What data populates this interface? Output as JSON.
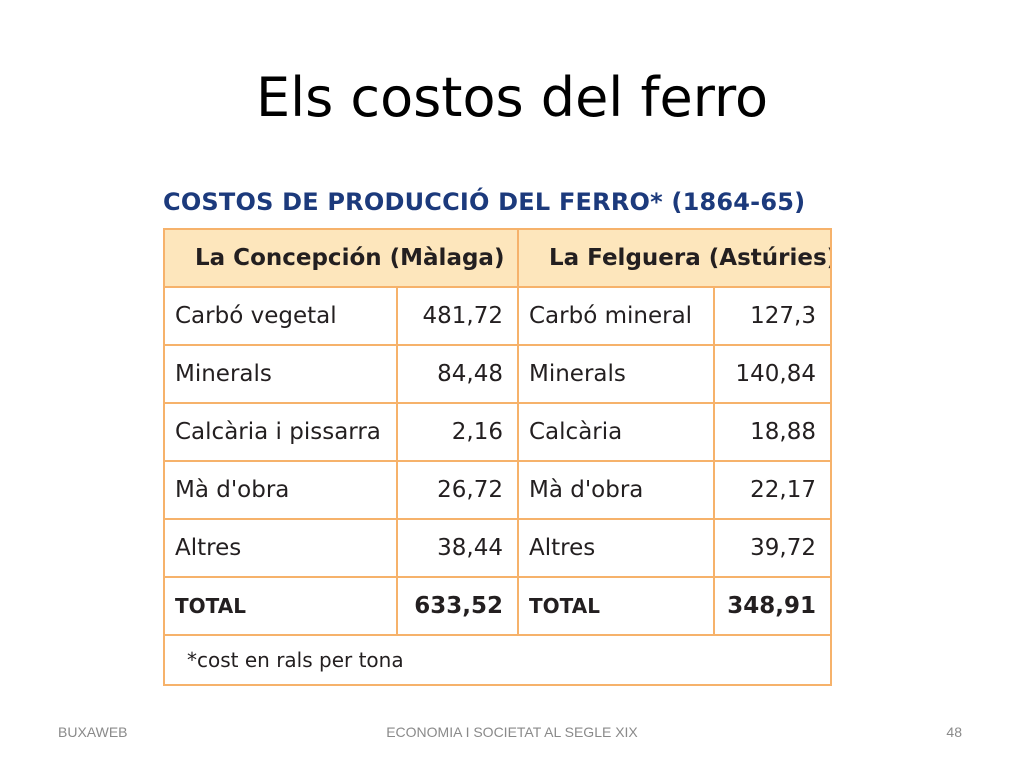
{
  "title": "Els costos del ferro",
  "table": {
    "heading": "COSTOS DE PRODUCCIÓ DEL FERRO* (1864-65)",
    "col_headers": [
      "La Concepción (Màlaga)",
      "La Felguera (Astúries)"
    ],
    "rows": [
      [
        "Carbó vegetal",
        "481,72",
        "Carbó mineral",
        "127,3"
      ],
      [
        "Minerals",
        "84,48",
        "Minerals",
        "140,84"
      ],
      [
        "Calcària i pissarra",
        "2,16",
        "Calcària",
        "18,88"
      ],
      [
        "Mà d'obra",
        "26,72",
        "Mà d'obra",
        "22,17"
      ],
      [
        "Altres",
        "38,44",
        "Altres",
        "39,72"
      ]
    ],
    "total": [
      "TOTAL",
      "633,52",
      "TOTAL",
      "348,91"
    ],
    "note": "*cost en rals per tona"
  },
  "footer": {
    "left": "BUXAWEB",
    "center": "ECONOMIA I SOCIETAT AL SEGLE XIX",
    "page": "48"
  },
  "colors": {
    "heading": "#1c3a7c",
    "border": "#f6b26b",
    "header_fill": "#fde6bc"
  }
}
